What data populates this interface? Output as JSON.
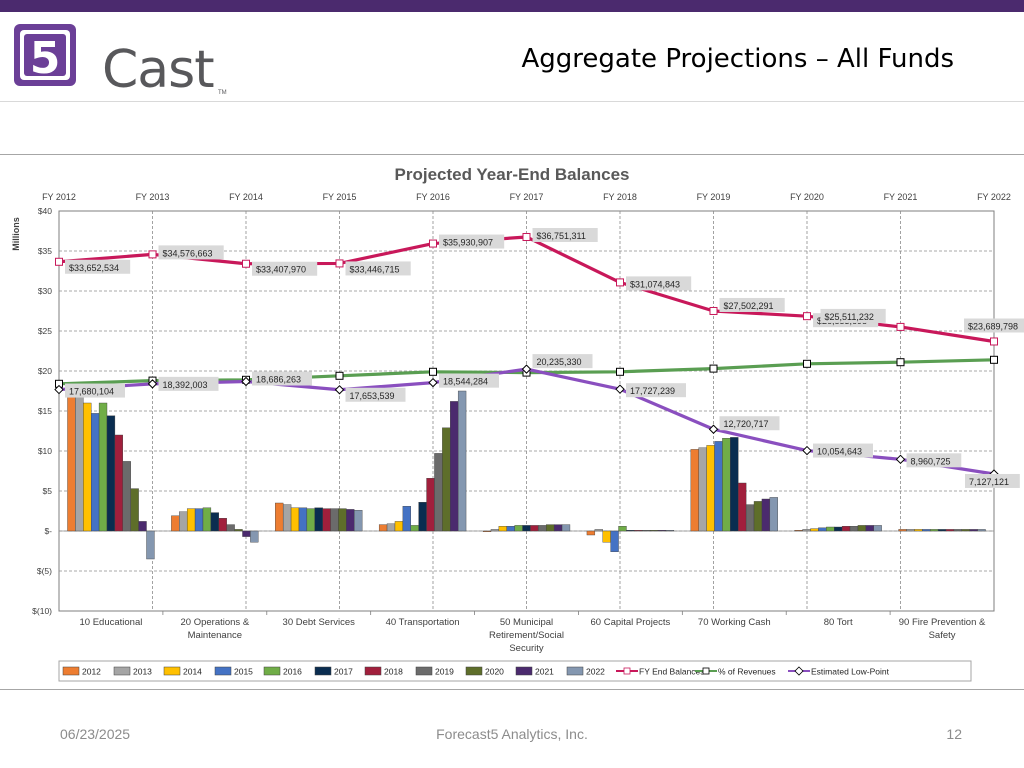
{
  "header": {
    "logo_mark": "5",
    "logo_text": "Cast",
    "logo_tm": "TM",
    "title": "Aggregate Projections – All Funds"
  },
  "footer": {
    "date": "06/23/2025",
    "company": "Forecast5 Analytics, Inc.",
    "page": "12"
  },
  "colors": {
    "top_bar": "#4b2a6e",
    "logo_purple": "#6b3f97",
    "fy_end_line": "#c8185a",
    "revenues_line": "#5a9e52",
    "low_point_line": "#8a4fbf"
  },
  "chart_data": {
    "type": "bar",
    "title": "Projected Year-End Balances",
    "ylabel": "Millions",
    "ylim": [
      -10,
      40
    ],
    "y_ticks": [
      {
        "v": 40,
        "label": "$40"
      },
      {
        "v": 35,
        "label": "$35"
      },
      {
        "v": 30,
        "label": "$30"
      },
      {
        "v": 25,
        "label": "$25"
      },
      {
        "v": 20,
        "label": "$20"
      },
      {
        "v": 15,
        "label": "$15"
      },
      {
        "v": 10,
        "label": "$10"
      },
      {
        "v": 5,
        "label": "$5"
      },
      {
        "v": 0,
        "label": "$-"
      },
      {
        "v": -5,
        "label": "$(5)"
      },
      {
        "v": -10,
        "label": "$(10)"
      }
    ],
    "grid": true,
    "legend_position": "bottom",
    "categories": [
      "10 Educational",
      "20 Operations & Maintenance",
      "30 Debt Services",
      "40 Transportation",
      "50 Municipal Retirement/Social Security",
      "60 Capital Projects",
      "70 Working Cash",
      "80 Tort",
      "90 Fire Prevention & Safety"
    ],
    "series": [
      {
        "name": "2012",
        "color": "#ed7d31",
        "values": [
          16.8,
          1.9,
          3.5,
          0.8,
          -0.1,
          -0.5,
          10.2,
          0.1,
          0.2
        ]
      },
      {
        "name": "2013",
        "color": "#a5a5a5",
        "values": [
          16.8,
          2.4,
          3.3,
          0.9,
          0.2,
          0.2,
          10.4,
          0.2,
          0.2
        ]
      },
      {
        "name": "2014",
        "color": "#ffc000",
        "values": [
          16.0,
          2.8,
          2.9,
          1.2,
          0.6,
          -1.4,
          10.7,
          0.3,
          0.2
        ]
      },
      {
        "name": "2015",
        "color": "#4472c4",
        "values": [
          14.7,
          2.8,
          2.9,
          3.1,
          0.6,
          -2.6,
          11.2,
          0.4,
          0.2
        ]
      },
      {
        "name": "2016",
        "color": "#70ad47",
        "values": [
          16.0,
          2.9,
          2.8,
          0.7,
          0.7,
          0.6,
          11.6,
          0.5,
          0.2
        ]
      },
      {
        "name": "2017",
        "color": "#0a2d50",
        "values": [
          14.4,
          2.3,
          2.9,
          3.6,
          0.7,
          0.1,
          11.7,
          0.5,
          0.2
        ]
      },
      {
        "name": "2018",
        "color": "#a11f3c",
        "values": [
          12.0,
          1.6,
          2.8,
          6.6,
          0.7,
          0.1,
          6.0,
          0.6,
          0.2
        ]
      },
      {
        "name": "2019",
        "color": "#6b6b6b",
        "values": [
          8.7,
          0.8,
          2.8,
          9.7,
          0.7,
          0.1,
          3.3,
          0.6,
          0.2
        ]
      },
      {
        "name": "2020",
        "color": "#5e6e2a",
        "values": [
          5.3,
          0.2,
          2.8,
          12.9,
          0.8,
          0.1,
          3.7,
          0.7,
          0.2
        ]
      },
      {
        "name": "2021",
        "color": "#4b2a6e",
        "values": [
          1.2,
          -0.7,
          2.7,
          16.2,
          0.8,
          0.1,
          4.0,
          0.7,
          0.2
        ]
      },
      {
        "name": "2022",
        "color": "#8497b0",
        "values": [
          -3.5,
          -1.4,
          2.6,
          17.5,
          0.8,
          0.1,
          4.2,
          0.7,
          0.2
        ]
      }
    ],
    "x_years": [
      "FY 2012",
      "FY 2013",
      "FY 2014",
      "FY 2015",
      "FY 2016",
      "FY 2017",
      "FY 2018",
      "FY 2019",
      "FY 2020",
      "FY 2021",
      "FY 2022"
    ],
    "lines": [
      {
        "name": "FY End Balances",
        "color": "#c8185a",
        "marker": "square",
        "values": [
          33.652534,
          34.576663,
          33.40797,
          33.446715,
          35.930907,
          36.751311,
          31.074843,
          27.502291,
          26.853698,
          25.511232,
          23.689798
        ],
        "labels": [
          "$33,652,534",
          "$34,576,663",
          "$33,407,970",
          "$33,446,715",
          "$35,930,907",
          "$36,751,311",
          "$31,074,843",
          "$27,502,291",
          "$26,853,698",
          "$25,511,232",
          "$23,689,798"
        ]
      },
      {
        "name": "% of Revenues",
        "color": "#5a9e52",
        "marker": "square",
        "values": [
          18.4,
          18.8,
          18.9,
          19.4,
          19.9,
          19.8,
          19.9,
          20.3,
          20.9,
          21.1,
          21.4
        ],
        "labels": []
      },
      {
        "name": "Estimated Low-Point",
        "color": "#8a4fbf",
        "marker": "diamond",
        "values": [
          17.680104,
          18.392003,
          18.686263,
          17.653539,
          18.544284,
          20.23533,
          17.727239,
          12.720717,
          10.054643,
          8.960725,
          7.127121
        ],
        "labels": [
          "17,680,104",
          "18,392,003",
          "18,686,263",
          "17,653,539",
          "18,544,284",
          "20,235,330",
          "17,727,239",
          "12,720,717",
          "10,054,643",
          "8,960,725",
          "7,127,121"
        ]
      }
    ],
    "legend": [
      "2012",
      "2013",
      "2014",
      "2015",
      "2016",
      "2017",
      "2018",
      "2019",
      "2020",
      "2021",
      "2022",
      "FY End Balances",
      "% of Revenues",
      "Estimated Low-Point"
    ]
  }
}
